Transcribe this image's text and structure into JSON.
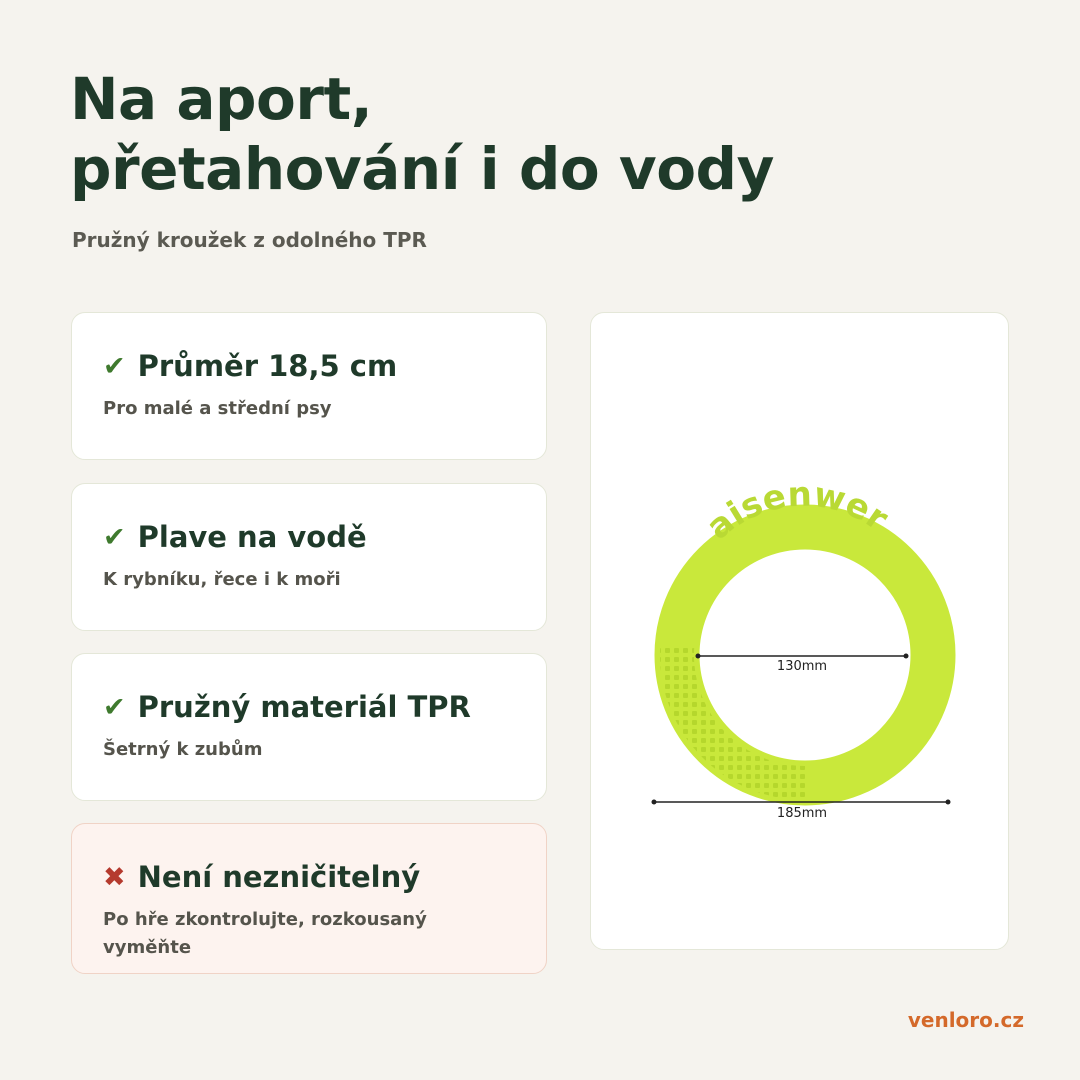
{
  "header": {
    "title_lines": [
      "Na aport,",
      "přetahování i do vody"
    ],
    "subtitle": "Pružný kroužek z odolného TPR"
  },
  "cards": [
    {
      "icon": "✔",
      "title": "Průměr 18,5 cm",
      "text": "Pro malé a střední psy"
    },
    {
      "icon": "✔",
      "title": "Plave na vodě",
      "text": "K rybníku, řece i k moři"
    },
    {
      "icon": "✔",
      "title": "Pružný materiál TPR",
      "text": "Šetrný k zubům"
    },
    {
      "icon": "✖",
      "title": "Není nezničitelný",
      "text": "Po hře zkontrolujte, rozkousaný vyměňte"
    }
  ],
  "image": {
    "embossed_text": "aisenwer",
    "inner_label": "130mm",
    "outer_label": "185mm"
  },
  "footer": {
    "site": "venloro.cz"
  }
}
